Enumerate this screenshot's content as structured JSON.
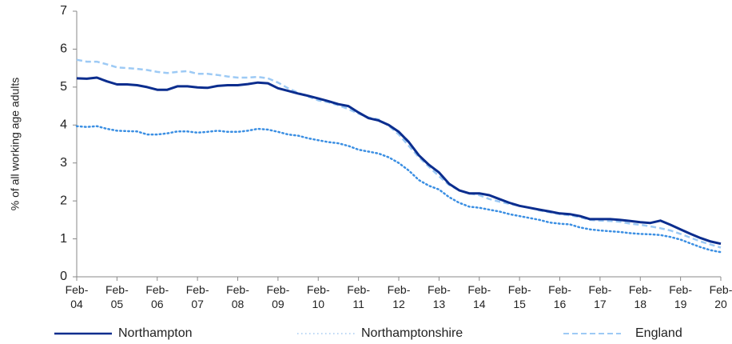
{
  "chart_data": {
    "type": "line",
    "y_label": "% of all working age adults",
    "categories": [
      "Feb-04",
      null,
      null,
      null,
      "Feb-05",
      null,
      null,
      null,
      "Feb-06",
      null,
      null,
      null,
      "Feb-07",
      null,
      null,
      null,
      "Feb-08",
      null,
      null,
      null,
      "Feb-09",
      null,
      null,
      null,
      "Feb-10",
      null,
      null,
      null,
      "Feb-11",
      null,
      null,
      null,
      "Feb-12",
      null,
      null,
      null,
      "Feb-13",
      null,
      null,
      null,
      "Feb-14",
      null,
      null,
      null,
      "Feb-15",
      null,
      null,
      null,
      "Feb-16",
      null,
      null,
      null,
      "Feb-17",
      null,
      null,
      null,
      "Feb-18",
      null,
      null,
      null,
      "Feb-19",
      null,
      null,
      null,
      "Feb-20"
    ],
    "series": [
      {
        "name": "Northampton",
        "color": "#0b2d8e",
        "style": "solid",
        "values": [
          5.23,
          5.22,
          5.25,
          5.15,
          5.07,
          5.07,
          5.05,
          5.0,
          4.93,
          4.93,
          5.02,
          5.02,
          4.99,
          4.98,
          5.03,
          5.05,
          5.05,
          5.08,
          5.12,
          5.1,
          4.97,
          4.9,
          4.83,
          4.77,
          4.7,
          4.63,
          4.55,
          4.5,
          4.33,
          4.18,
          4.12,
          4.0,
          3.82,
          3.55,
          3.2,
          2.95,
          2.75,
          2.45,
          2.28,
          2.2,
          2.2,
          2.15,
          2.05,
          1.95,
          1.87,
          1.82,
          1.77,
          1.72,
          1.67,
          1.65,
          1.6,
          1.52,
          1.52,
          1.52,
          1.5,
          1.47,
          1.44,
          1.42,
          1.48,
          1.37,
          1.25,
          1.13,
          1.02,
          0.93,
          0.87
        ]
      },
      {
        "name": "Northamptonshire",
        "color": "#3b8fe3",
        "style": "dotted",
        "values": [
          3.97,
          3.95,
          3.97,
          3.9,
          3.85,
          3.84,
          3.83,
          3.75,
          3.75,
          3.78,
          3.83,
          3.83,
          3.8,
          3.82,
          3.85,
          3.82,
          3.82,
          3.85,
          3.9,
          3.88,
          3.82,
          3.75,
          3.72,
          3.65,
          3.6,
          3.55,
          3.52,
          3.45,
          3.35,
          3.3,
          3.25,
          3.15,
          3.0,
          2.8,
          2.55,
          2.4,
          2.3,
          2.1,
          1.95,
          1.85,
          1.82,
          1.77,
          1.72,
          1.65,
          1.6,
          1.55,
          1.5,
          1.43,
          1.4,
          1.38,
          1.3,
          1.25,
          1.22,
          1.2,
          1.18,
          1.15,
          1.13,
          1.12,
          1.1,
          1.05,
          0.98,
          0.88,
          0.78,
          0.7,
          0.65
        ]
      },
      {
        "name": "England",
        "color": "#9dcaf5",
        "style": "dashed",
        "values": [
          5.72,
          5.67,
          5.67,
          5.6,
          5.52,
          5.5,
          5.48,
          5.45,
          5.4,
          5.37,
          5.4,
          5.42,
          5.35,
          5.35,
          5.32,
          5.28,
          5.25,
          5.25,
          5.27,
          5.23,
          5.12,
          4.97,
          4.85,
          4.75,
          4.65,
          4.6,
          4.52,
          4.42,
          4.3,
          4.2,
          4.15,
          3.98,
          3.75,
          3.45,
          3.15,
          2.9,
          2.65,
          2.42,
          2.28,
          2.2,
          2.15,
          2.05,
          1.98,
          1.92,
          1.87,
          1.82,
          1.75,
          1.7,
          1.65,
          1.62,
          1.57,
          1.5,
          1.48,
          1.47,
          1.45,
          1.4,
          1.37,
          1.33,
          1.28,
          1.22,
          1.13,
          1.03,
          0.93,
          0.85,
          0.77
        ]
      }
    ],
    "ylim": [
      0,
      7
    ],
    "yticks": [
      0,
      1,
      2,
      3,
      4,
      5,
      6,
      7
    ],
    "grid": false,
    "legend": "bottom"
  }
}
